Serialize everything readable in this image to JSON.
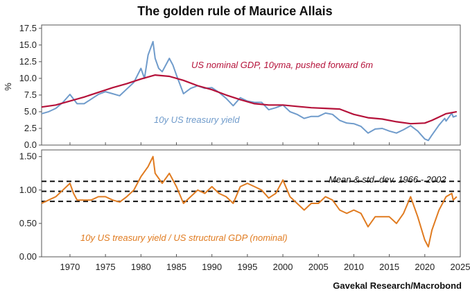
{
  "chart_data": {
    "title": "The golden rule of Maurice Allais",
    "source": "Gavekal Research/Macrobond",
    "x_ticks": [
      "1970",
      "1975",
      "1980",
      "1985",
      "1990",
      "1995",
      "2000",
      "2005",
      "2010",
      "2015",
      "2020",
      "2025"
    ],
    "xlim": [
      1966,
      2025
    ],
    "colors": {
      "gdp": "#b5123a",
      "yield": "#6f9bcb",
      "ratio": "#e07b20",
      "dashed": "#111111"
    },
    "panels": [
      {
        "type": "line",
        "ylabel": "%",
        "ylim": [
          0,
          18
        ],
        "y_ticks": [
          "0.0",
          "2.5",
          "5.0",
          "7.5",
          "10.0",
          "12.5",
          "15.0",
          "17.5"
        ],
        "y_tick_values": [
          0,
          2.5,
          5,
          7.5,
          10,
          12.5,
          15,
          17.5
        ],
        "annotations": [
          {
            "text": "US nominal GDP, 10yma, pushed forward 6m",
            "color": "gdp"
          },
          {
            "text": "10y US treasury yield",
            "color": "yield"
          }
        ],
        "series": [
          {
            "key": "gdp",
            "x": [
              1966,
              1968,
              1970,
              1972,
              1974,
              1976,
              1978,
              1980,
              1982,
              1984,
              1986,
              1988,
              1990,
              1992,
              1994,
              1996,
              1998,
              2000,
              2002,
              2004,
              2006,
              2008,
              2010,
              2012,
              2014,
              2016,
              2018,
              2020,
              2021,
              2022,
              2023,
              2024,
              2024.5
            ],
            "y": [
              5.7,
              6.0,
              6.6,
              7.2,
              7.9,
              8.6,
              9.2,
              9.9,
              10.5,
              10.3,
              9.7,
              8.9,
              8.3,
              7.5,
              6.8,
              6.2,
              6.0,
              6.0,
              5.8,
              5.6,
              5.5,
              5.4,
              4.6,
              4.1,
              3.9,
              3.5,
              3.2,
              3.3,
              3.7,
              4.2,
              4.7,
              4.9,
              5.0
            ]
          },
          {
            "key": "yield",
            "x": [
              1966,
              1967,
              1968,
              1969,
              1970,
              1971,
              1972,
              1973,
              1974,
              1975,
              1976,
              1977,
              1978,
              1979,
              1980,
              1980.5,
              1981,
              1981.7,
              1982,
              1982.5,
              1983,
              1984,
              1984.5,
              1985,
              1986,
              1987,
              1988,
              1989,
              1990,
              1991,
              1992,
              1993,
              1994,
              1995,
              1996,
              1997,
              1998,
              1999,
              2000,
              2001,
              2002,
              2003,
              2004,
              2005,
              2006,
              2007,
              2008,
              2009,
              2010,
              2011,
              2012,
              2013,
              2014,
              2015,
              2016,
              2017,
              2018,
              2019,
              2020,
              2020.5,
              2021,
              2022,
              2022.8,
              2023,
              2023.8,
              2024,
              2024.5
            ],
            "y": [
              4.7,
              5.0,
              5.5,
              6.4,
              7.6,
              6.2,
              6.2,
              6.9,
              7.6,
              8.0,
              7.7,
              7.4,
              8.4,
              9.4,
              11.5,
              10.0,
              13.5,
              15.5,
              13.0,
              11.5,
              11.0,
              13.0,
              12.0,
              10.5,
              7.7,
              8.5,
              8.9,
              8.5,
              8.6,
              7.9,
              7.0,
              5.9,
              7.1,
              6.6,
              6.4,
              6.4,
              5.3,
              5.6,
              6.0,
              5.0,
              4.6,
              4.0,
              4.3,
              4.3,
              4.8,
              4.6,
              3.7,
              3.3,
              3.2,
              2.8,
              1.8,
              2.4,
              2.5,
              2.1,
              1.8,
              2.3,
              2.9,
              2.1,
              0.9,
              0.7,
              1.5,
              3.0,
              4.0,
              3.6,
              4.8,
              4.2,
              4.4
            ]
          }
        ]
      },
      {
        "type": "line",
        "ylim": [
          0,
          1.6
        ],
        "y_ticks": [
          "0.00",
          "0.50",
          "1.00",
          "1.50"
        ],
        "y_tick_values": [
          0,
          0.5,
          1.0,
          1.5
        ],
        "annotations": [
          {
            "text": "Mean & std. dev. 1966 - 2002",
            "color": "dashed"
          },
          {
            "text": "10y US treasury yield / US structural GDP (nominal)",
            "color": "ratio"
          }
        ],
        "hlines": [
          1.13,
          0.98,
          0.83
        ],
        "series": [
          {
            "key": "ratio",
            "x": [
              1966,
              1967,
              1968,
              1969,
              1970,
              1970.5,
              1971,
              1972,
              1973,
              1974,
              1975,
              1976,
              1977,
              1978,
              1979,
              1980,
              1981,
              1981.7,
              1982,
              1983,
              1984,
              1985,
              1986,
              1987,
              1988,
              1989,
              1990,
              1991,
              1992,
              1993,
              1994,
              1995,
              1996,
              1997,
              1998,
              1999,
              2000,
              2001,
              2002,
              2003,
              2004,
              2005,
              2006,
              2007,
              2008,
              2009,
              2010,
              2011,
              2012,
              2013,
              2014,
              2015,
              2016,
              2017,
              2018,
              2019,
              2020,
              2020.5,
              2021,
              2022,
              2023,
              2023.8,
              2024,
              2024.5
            ],
            "y": [
              0.8,
              0.85,
              0.9,
              1.0,
              1.1,
              0.95,
              0.85,
              0.85,
              0.85,
              0.9,
              0.9,
              0.85,
              0.82,
              0.9,
              1.0,
              1.2,
              1.35,
              1.5,
              1.25,
              1.1,
              1.25,
              1.05,
              0.8,
              0.9,
              1.0,
              0.95,
              1.05,
              0.95,
              0.9,
              0.8,
              1.05,
              1.1,
              1.05,
              1.0,
              0.88,
              0.95,
              1.15,
              0.9,
              0.8,
              0.7,
              0.8,
              0.8,
              0.9,
              0.85,
              0.7,
              0.65,
              0.7,
              0.65,
              0.45,
              0.6,
              0.6,
              0.6,
              0.5,
              0.65,
              0.9,
              0.6,
              0.25,
              0.15,
              0.4,
              0.7,
              0.9,
              0.95,
              0.85,
              0.9
            ]
          }
        ]
      }
    ]
  }
}
